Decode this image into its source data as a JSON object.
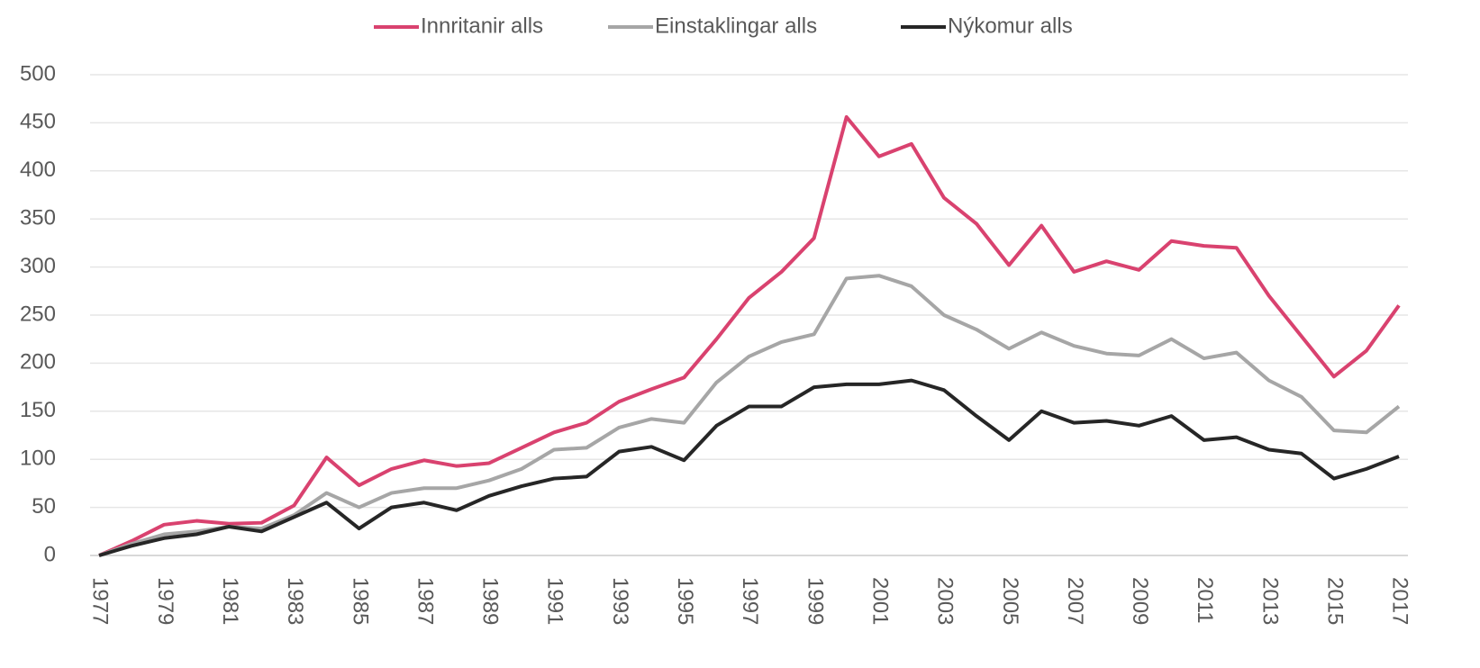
{
  "chart_data": {
    "type": "line",
    "categories": [
      "1977",
      null,
      "1979",
      null,
      "1981",
      null,
      "1983",
      null,
      "1985",
      null,
      "1987",
      null,
      "1989",
      null,
      "1991",
      null,
      "1993",
      null,
      "1995",
      null,
      "1997",
      null,
      "1999",
      null,
      "2001",
      null,
      "2003",
      null,
      "2005",
      null,
      "2007",
      null,
      "2009",
      null,
      "2011",
      null,
      "2013",
      null,
      "2015",
      null,
      "2017"
    ],
    "series": [
      {
        "name": "Innritanir alls",
        "color": "#d9426f",
        "values": [
          0,
          15,
          32,
          36,
          33,
          34,
          52,
          102,
          73,
          90,
          99,
          93,
          96,
          112,
          128,
          138,
          160,
          173,
          185,
          225,
          268,
          295,
          330,
          456,
          415,
          428,
          372,
          345,
          302,
          343,
          295,
          306,
          297,
          327,
          322,
          320,
          270,
          228,
          186,
          213,
          260
        ]
      },
      {
        "name": "Einstaklingar alls",
        "color": "#a6a6a6",
        "values": [
          0,
          12,
          22,
          25,
          30,
          28,
          42,
          65,
          50,
          65,
          70,
          70,
          78,
          90,
          110,
          112,
          133,
          142,
          138,
          180,
          207,
          222,
          230,
          288,
          291,
          280,
          250,
          235,
          215,
          232,
          218,
          210,
          208,
          225,
          205,
          211,
          182,
          165,
          130,
          128,
          155
        ]
      },
      {
        "name": "Nýkomur alls",
        "color": "#262626",
        "values": [
          0,
          10,
          18,
          22,
          30,
          25,
          40,
          55,
          28,
          50,
          55,
          47,
          62,
          72,
          80,
          82,
          108,
          113,
          99,
          135,
          155,
          155,
          175,
          178,
          178,
          182,
          172,
          145,
          120,
          150,
          138,
          140,
          135,
          145,
          120,
          123,
          110,
          106,
          80,
          90,
          103
        ]
      }
    ],
    "ylim": [
      0,
      500
    ],
    "yticks": [
      0,
      50,
      100,
      150,
      200,
      250,
      300,
      350,
      400,
      450,
      500
    ],
    "grid": true,
    "legend": "top"
  }
}
